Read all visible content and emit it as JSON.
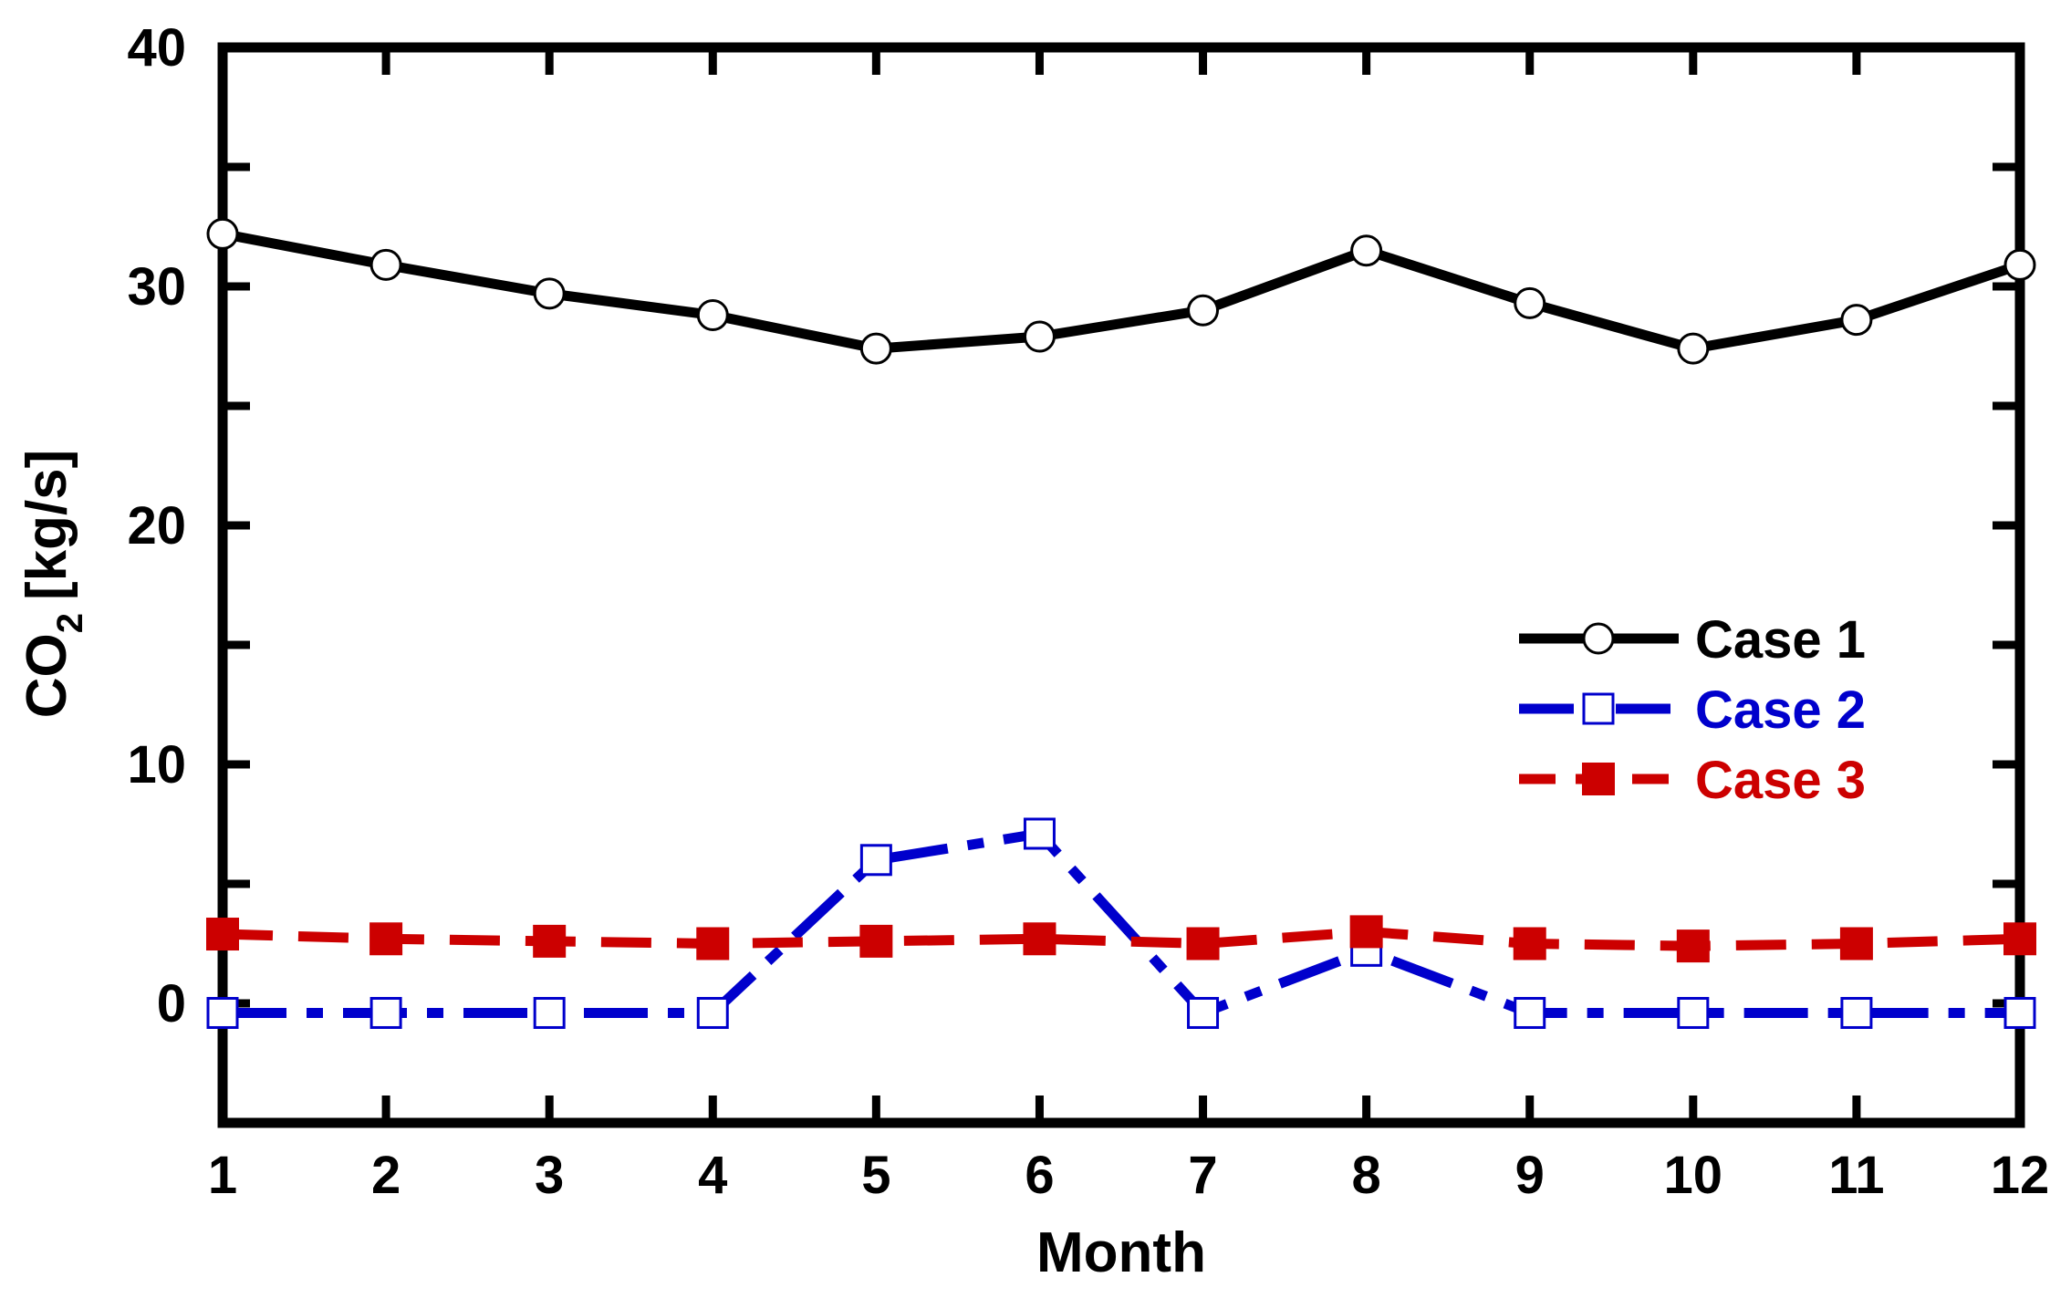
{
  "chart_data": {
    "type": "line",
    "title": "",
    "xlabel": "Month",
    "ylabel_main": "CO",
    "ylabel_sub": "2",
    "ylabel_unit": "[kg/s]",
    "xlim": [
      1,
      12
    ],
    "ylim": [
      -5,
      40
    ],
    "x_ticks": [
      1,
      2,
      3,
      4,
      5,
      6,
      7,
      8,
      9,
      10,
      11,
      12
    ],
    "x_tick_labels": [
      "1",
      "2",
      "3",
      "4",
      "5",
      "6",
      "7",
      "8",
      "9",
      "10",
      "11",
      "12"
    ],
    "y_tick_values": [
      0,
      10,
      20,
      30,
      40
    ],
    "y_tick_labels": [
      "0",
      "10",
      "20",
      "30",
      "40"
    ],
    "y_minor_ticks": [
      -5,
      5,
      15,
      25,
      35
    ],
    "grid": false,
    "legend_position": "center-right",
    "series": [
      {
        "name": "Case 1",
        "color": "#000000",
        "line_style": "solid",
        "marker": "open-circle",
        "x": [
          1,
          2,
          3,
          4,
          5,
          6,
          7,
          8,
          9,
          10,
          11,
          12
        ],
        "values": [
          32.2,
          30.9,
          29.7,
          28.8,
          27.4,
          27.9,
          29.0,
          31.5,
          29.3,
          27.4,
          28.6,
          30.9
        ]
      },
      {
        "name": "Case 2",
        "color": "#0000cc",
        "line_style": "dash-dot",
        "marker": "open-square",
        "x": [
          1,
          2,
          3,
          4,
          5,
          6,
          7,
          8,
          9,
          10,
          11,
          12
        ],
        "values": [
          -0.4,
          -0.4,
          -0.4,
          -0.4,
          6.0,
          7.1,
          -0.4,
          2.2,
          -0.4,
          -0.4,
          -0.4,
          -0.4
        ]
      },
      {
        "name": "Case 3",
        "color": "#cc0000",
        "line_style": "dashed",
        "marker": "filled-square",
        "x": [
          1,
          2,
          3,
          4,
          5,
          6,
          7,
          8,
          9,
          10,
          11,
          12
        ],
        "values": [
          2.9,
          2.7,
          2.6,
          2.5,
          2.6,
          2.7,
          2.5,
          3.0,
          2.5,
          2.4,
          2.5,
          2.7
        ]
      }
    ]
  }
}
